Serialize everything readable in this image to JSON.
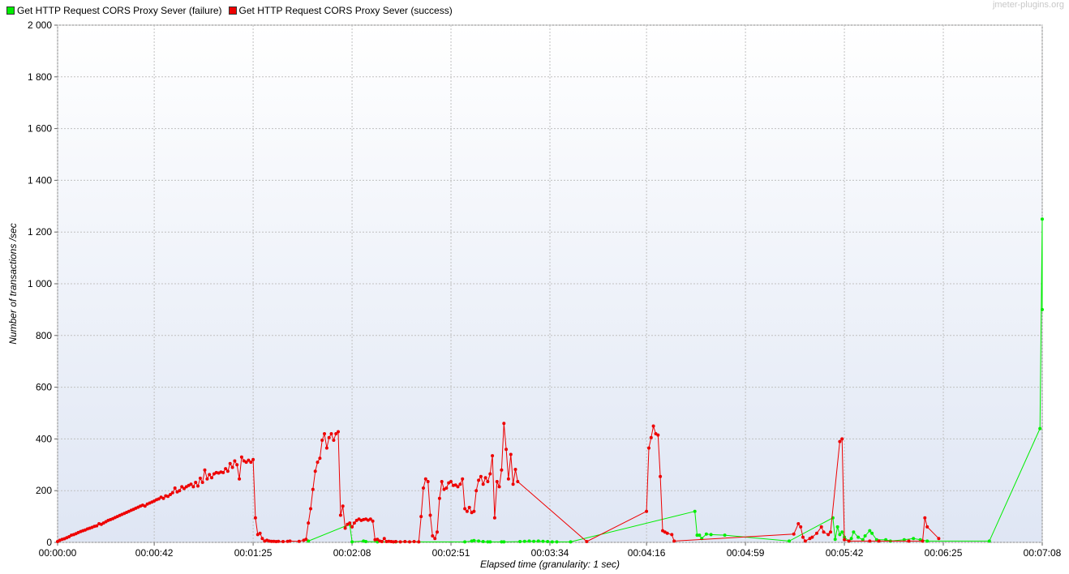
{
  "watermark": "jmeter-plugins.org",
  "colors": {
    "failure": "#00ee00",
    "success": "#ee0000",
    "plot_bg_top": "#ffffff",
    "plot_bg_bottom": "#dfe6f4",
    "grid": "#c0c0c0"
  },
  "chart_data": {
    "type": "line",
    "title": "",
    "xlabel": "Elapsed time (granularity: 1 sec)",
    "ylabel": "Number of transactions /sec",
    "xlim": [
      0,
      428
    ],
    "ylim": [
      0,
      2000
    ],
    "grid": true,
    "legend_position": "top-left",
    "x_unit": "seconds",
    "x_ticks": [
      {
        "value": 0,
        "label": "00:00:00"
      },
      {
        "value": 42,
        "label": "00:00:42"
      },
      {
        "value": 85,
        "label": "00:01:25"
      },
      {
        "value": 128,
        "label": "00:02:08"
      },
      {
        "value": 171,
        "label": "00:02:51"
      },
      {
        "value": 214,
        "label": "00:03:34"
      },
      {
        "value": 256,
        "label": "00:04:16"
      },
      {
        "value": 299,
        "label": "00:04:59"
      },
      {
        "value": 342,
        "label": "00:05:42"
      },
      {
        "value": 385,
        "label": "00:06:25"
      },
      {
        "value": 428,
        "label": "00:07:08"
      }
    ],
    "y_ticks": [
      {
        "value": 0,
        "label": "0"
      },
      {
        "value": 200,
        "label": "200"
      },
      {
        "value": 400,
        "label": "400"
      },
      {
        "value": 600,
        "label": "600"
      },
      {
        "value": 800,
        "label": "800"
      },
      {
        "value": 1000,
        "label": "1 000"
      },
      {
        "value": 1200,
        "label": "1 200"
      },
      {
        "value": 1400,
        "label": "1 400"
      },
      {
        "value": 1600,
        "label": "1 600"
      },
      {
        "value": 1800,
        "label": "1 800"
      },
      {
        "value": 2000,
        "label": "2 000"
      }
    ],
    "series": [
      {
        "name": "Get HTTP Request CORS Proxy Sever (failure)",
        "color": "#00ee00",
        "points": [
          [
            109,
            5
          ],
          [
            127,
            70
          ],
          [
            128,
            2
          ],
          [
            133,
            5
          ],
          [
            134,
            3
          ],
          [
            139,
            2
          ],
          [
            147,
            2
          ],
          [
            177,
            2
          ],
          [
            180,
            5
          ],
          [
            181,
            7
          ],
          [
            183,
            5
          ],
          [
            185,
            3
          ],
          [
            187,
            2
          ],
          [
            188,
            2
          ],
          [
            193,
            2
          ],
          [
            194,
            2
          ],
          [
            201,
            3
          ],
          [
            203,
            4
          ],
          [
            205,
            5
          ],
          [
            207,
            4
          ],
          [
            209,
            5
          ],
          [
            211,
            4
          ],
          [
            213,
            3
          ],
          [
            215,
            2
          ],
          [
            217,
            2
          ],
          [
            223,
            2
          ],
          [
            277,
            120
          ],
          [
            278,
            28
          ],
          [
            279,
            28
          ],
          [
            280,
            15
          ],
          [
            282,
            32
          ],
          [
            284,
            30
          ],
          [
            290,
            28
          ],
          [
            318,
            5
          ],
          [
            337,
            95
          ],
          [
            338,
            12
          ],
          [
            339,
            60
          ],
          [
            340,
            30
          ],
          [
            341,
            40
          ],
          [
            342,
            20
          ],
          [
            344,
            5
          ],
          [
            345,
            15
          ],
          [
            346,
            40
          ],
          [
            348,
            20
          ],
          [
            350,
            10
          ],
          [
            351,
            25
          ],
          [
            353,
            45
          ],
          [
            354,
            35
          ],
          [
            356,
            10
          ],
          [
            360,
            10
          ],
          [
            362,
            5
          ],
          [
            368,
            10
          ],
          [
            372,
            15
          ],
          [
            375,
            10
          ],
          [
            378,
            5
          ],
          [
            405,
            5
          ],
          [
            427,
            440
          ],
          [
            428,
            1250
          ],
          [
            429,
            900
          ]
        ]
      },
      {
        "name": "Get HTTP Request CORS Proxy Sever (success)",
        "color": "#ee0000",
        "points": [
          [
            0,
            3
          ],
          [
            1,
            8
          ],
          [
            2,
            12
          ],
          [
            3,
            14
          ],
          [
            4,
            18
          ],
          [
            5,
            22
          ],
          [
            6,
            28
          ],
          [
            7,
            30
          ],
          [
            8,
            34
          ],
          [
            9,
            38
          ],
          [
            10,
            42
          ],
          [
            11,
            45
          ],
          [
            12,
            48
          ],
          [
            13,
            52
          ],
          [
            14,
            55
          ],
          [
            15,
            58
          ],
          [
            16,
            62
          ],
          [
            17,
            64
          ],
          [
            18,
            72
          ],
          [
            19,
            70
          ],
          [
            20,
            75
          ],
          [
            21,
            80
          ],
          [
            22,
            85
          ],
          [
            23,
            88
          ],
          [
            24,
            92
          ],
          [
            25,
            96
          ],
          [
            26,
            100
          ],
          [
            27,
            104
          ],
          [
            28,
            108
          ],
          [
            29,
            112
          ],
          [
            30,
            116
          ],
          [
            31,
            120
          ],
          [
            32,
            124
          ],
          [
            33,
            128
          ],
          [
            34,
            132
          ],
          [
            35,
            136
          ],
          [
            36,
            140
          ],
          [
            37,
            144
          ],
          [
            38,
            140
          ],
          [
            39,
            148
          ],
          [
            40,
            152
          ],
          [
            41,
            156
          ],
          [
            42,
            160
          ],
          [
            43,
            165
          ],
          [
            44,
            168
          ],
          [
            45,
            175
          ],
          [
            46,
            170
          ],
          [
            47,
            180
          ],
          [
            48,
            178
          ],
          [
            49,
            185
          ],
          [
            50,
            192
          ],
          [
            51,
            210
          ],
          [
            52,
            195
          ],
          [
            53,
            200
          ],
          [
            54,
            215
          ],
          [
            55,
            208
          ],
          [
            56,
            215
          ],
          [
            57,
            220
          ],
          [
            58,
            225
          ],
          [
            59,
            215
          ],
          [
            60,
            232
          ],
          [
            61,
            218
          ],
          [
            62,
            248
          ],
          [
            63,
            232
          ],
          [
            64,
            280
          ],
          [
            65,
            245
          ],
          [
            66,
            262
          ],
          [
            67,
            250
          ],
          [
            68,
            265
          ],
          [
            69,
            270
          ],
          [
            70,
            268
          ],
          [
            71,
            272
          ],
          [
            72,
            270
          ],
          [
            73,
            285
          ],
          [
            74,
            275
          ],
          [
            75,
            305
          ],
          [
            76,
            290
          ],
          [
            77,
            315
          ],
          [
            78,
            300
          ],
          [
            79,
            245
          ],
          [
            80,
            330
          ],
          [
            81,
            315
          ],
          [
            82,
            310
          ],
          [
            83,
            318
          ],
          [
            84,
            310
          ],
          [
            85,
            320
          ],
          [
            86,
            95
          ],
          [
            87,
            30
          ],
          [
            88,
            35
          ],
          [
            89,
            15
          ],
          [
            90,
            5
          ],
          [
            91,
            8
          ],
          [
            92,
            5
          ],
          [
            93,
            4
          ],
          [
            94,
            4
          ],
          [
            95,
            3
          ],
          [
            96,
            4
          ],
          [
            98,
            3
          ],
          [
            100,
            4
          ],
          [
            101,
            5
          ],
          [
            105,
            4
          ],
          [
            107,
            8
          ],
          [
            108,
            12
          ],
          [
            109,
            75
          ],
          [
            110,
            130
          ],
          [
            111,
            205
          ],
          [
            112,
            275
          ],
          [
            113,
            310
          ],
          [
            114,
            325
          ],
          [
            115,
            395
          ],
          [
            116,
            420
          ],
          [
            117,
            365
          ],
          [
            118,
            405
          ],
          [
            119,
            420
          ],
          [
            120,
            395
          ],
          [
            121,
            420
          ],
          [
            122,
            428
          ],
          [
            123,
            105
          ],
          [
            124,
            140
          ],
          [
            125,
            55
          ],
          [
            126,
            70
          ],
          [
            127,
            75
          ],
          [
            128,
            60
          ],
          [
            129,
            75
          ],
          [
            130,
            85
          ],
          [
            131,
            90
          ],
          [
            132,
            85
          ],
          [
            133,
            88
          ],
          [
            134,
            90
          ],
          [
            135,
            86
          ],
          [
            136,
            90
          ],
          [
            137,
            82
          ],
          [
            138,
            10
          ],
          [
            139,
            12
          ],
          [
            140,
            5
          ],
          [
            141,
            3
          ],
          [
            142,
            15
          ],
          [
            143,
            3
          ],
          [
            144,
            4
          ],
          [
            145,
            3
          ],
          [
            146,
            2
          ],
          [
            147,
            3
          ],
          [
            149,
            2
          ],
          [
            151,
            3
          ],
          [
            153,
            2
          ],
          [
            155,
            3
          ],
          [
            157,
            2
          ],
          [
            158,
            100
          ],
          [
            159,
            210
          ],
          [
            160,
            245
          ],
          [
            161,
            235
          ],
          [
            162,
            105
          ],
          [
            163,
            25
          ],
          [
            164,
            15
          ],
          [
            165,
            40
          ],
          [
            166,
            170
          ],
          [
            167,
            235
          ],
          [
            168,
            205
          ],
          [
            169,
            210
          ],
          [
            170,
            230
          ],
          [
            171,
            235
          ],
          [
            172,
            220
          ],
          [
            173,
            222
          ],
          [
            174,
            215
          ],
          [
            175,
            225
          ],
          [
            176,
            245
          ],
          [
            177,
            130
          ],
          [
            178,
            120
          ],
          [
            179,
            135
          ],
          [
            180,
            115
          ],
          [
            181,
            120
          ],
          [
            182,
            200
          ],
          [
            183,
            240
          ],
          [
            184,
            255
          ],
          [
            185,
            225
          ],
          [
            186,
            250
          ],
          [
            187,
            235
          ],
          [
            188,
            265
          ],
          [
            189,
            335
          ],
          [
            190,
            95
          ],
          [
            191,
            235
          ],
          [
            192,
            215
          ],
          [
            193,
            280
          ],
          [
            194,
            460
          ],
          [
            195,
            360
          ],
          [
            196,
            245
          ],
          [
            197,
            340
          ],
          [
            198,
            225
          ],
          [
            199,
            282
          ],
          [
            200,
            235
          ],
          [
            230,
            3
          ],
          [
            256,
            120
          ],
          [
            257,
            365
          ],
          [
            258,
            405
          ],
          [
            259,
            450
          ],
          [
            260,
            420
          ],
          [
            261,
            415
          ],
          [
            262,
            255
          ],
          [
            263,
            45
          ],
          [
            264,
            40
          ],
          [
            265,
            35
          ],
          [
            267,
            30
          ],
          [
            268,
            5
          ],
          [
            320,
            32
          ],
          [
            322,
            72
          ],
          [
            323,
            60
          ],
          [
            324,
            20
          ],
          [
            325,
            5
          ],
          [
            327,
            15
          ],
          [
            328,
            20
          ],
          [
            330,
            35
          ],
          [
            332,
            60
          ],
          [
            333,
            40
          ],
          [
            335,
            30
          ],
          [
            336,
            40
          ],
          [
            340,
            390
          ],
          [
            341,
            400
          ],
          [
            342,
            10
          ],
          [
            344,
            5
          ],
          [
            353,
            5
          ],
          [
            357,
            5
          ],
          [
            370,
            5
          ],
          [
            376,
            5
          ],
          [
            377,
            95
          ],
          [
            378,
            60
          ],
          [
            383,
            15
          ]
        ]
      }
    ]
  }
}
